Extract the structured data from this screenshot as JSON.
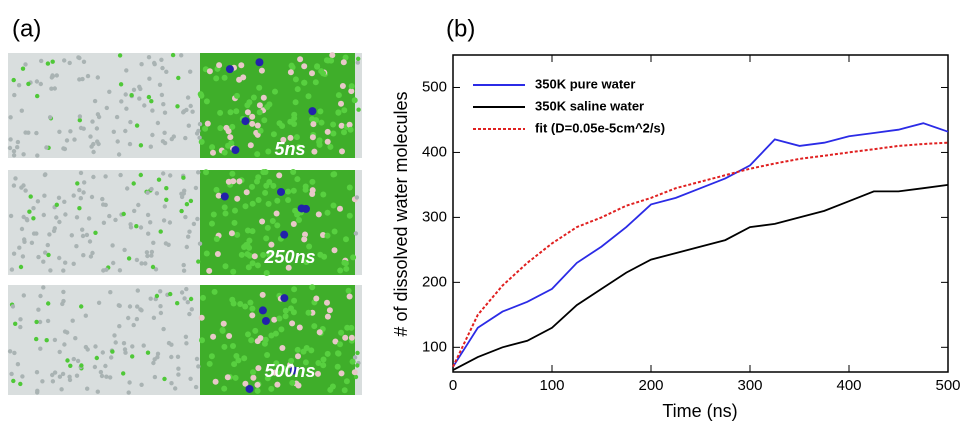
{
  "panel_a": {
    "label": "(a)",
    "snapshots": [
      "5ns",
      "250ns",
      "500ns"
    ]
  },
  "chart_data": {
    "type": "line",
    "title": "(b)",
    "x_label": "Time (ns)",
    "y_label": "# of dissolved water molecules",
    "x": [
      0,
      25,
      50,
      75,
      100,
      125,
      150,
      175,
      200,
      225,
      250,
      275,
      300,
      325,
      350,
      375,
      400,
      425,
      450,
      475,
      500
    ],
    "series": [
      {
        "name": "350K pure water",
        "color": "#2b2be6",
        "linestyle": "solid",
        "values": [
          70,
          130,
          155,
          170,
          190,
          230,
          255,
          285,
          320,
          330,
          345,
          360,
          380,
          420,
          410,
          415,
          425,
          430,
          435,
          445,
          432
        ]
      },
      {
        "name": "350K saline water",
        "color": "#000000",
        "linestyle": "solid",
        "values": [
          65,
          85,
          100,
          110,
          130,
          165,
          190,
          215,
          235,
          245,
          255,
          265,
          285,
          290,
          300,
          310,
          325,
          340,
          340,
          345,
          350
        ]
      },
      {
        "name": "fit (D=0.05e-5cm^2/s)",
        "color": "#e02020",
        "linestyle": "dotted",
        "values": [
          70,
          150,
          195,
          230,
          260,
          285,
          300,
          318,
          330,
          345,
          355,
          365,
          375,
          383,
          390,
          395,
          400,
          405,
          410,
          413,
          415
        ]
      }
    ],
    "xlim": [
      0,
      500
    ],
    "xticks": [
      0,
      100,
      200,
      300,
      400,
      500
    ],
    "ylim": [
      62,
      550
    ],
    "yticks": [
      100,
      200,
      300,
      400,
      500
    ],
    "legend": "upper-left",
    "grid": false
  }
}
